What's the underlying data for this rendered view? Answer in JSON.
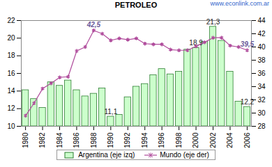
{
  "chart_data": {
    "type": "bar",
    "title": "PETROLEO",
    "source": "www.econlink.com.ar",
    "x": [
      1980,
      1981,
      1982,
      1983,
      1984,
      1985,
      1986,
      1987,
      1988,
      1989,
      1990,
      1991,
      1992,
      1993,
      1994,
      1995,
      1996,
      1997,
      1998,
      1999,
      2000,
      2001,
      2002,
      2003,
      2004,
      2005,
      2006
    ],
    "xlim": [
      1979.5,
      2006.5
    ],
    "xticks": [
      1980,
      1982,
      1984,
      1986,
      1988,
      1990,
      1992,
      1994,
      1996,
      1998,
      2000,
      2002,
      2004,
      2006
    ],
    "ylim": [
      10,
      22
    ],
    "yticks": [
      10,
      12,
      14,
      16,
      18,
      20,
      22
    ],
    "y2lim": [
      28,
      44
    ],
    "y2ticks": [
      28,
      30,
      32,
      34,
      36,
      38,
      40,
      42,
      44
    ],
    "legend": "bottom",
    "series": [
      {
        "name": "Argentina (eje izq)",
        "type": "bar",
        "color": "#ccffcc",
        "values": [
          14.1,
          13.1,
          12.1,
          15.0,
          14.6,
          15.2,
          14.1,
          13.4,
          13.7,
          14.3,
          11.1,
          11.3,
          13.3,
          14.5,
          14.8,
          15.8,
          16.5,
          15.9,
          16.2,
          18.7,
          18.9,
          19.6,
          21.3,
          19.7,
          16.2,
          12.8,
          12.2
        ]
      },
      {
        "name": "Mundo (eje der)",
        "type": "line",
        "axis": "y2",
        "color": "#b04c9c",
        "marker": "asterisk",
        "values": [
          29.6,
          31.5,
          33.7,
          34.5,
          35.4,
          35.5,
          39.4,
          40.0,
          42.5,
          42.0,
          41.0,
          41.3,
          41.1,
          41.3,
          40.5,
          40.4,
          40.4,
          39.6,
          39.5,
          39.5,
          40.1,
          40.7,
          41.4,
          41.4,
          40.2,
          40.0,
          39.5
        ]
      }
    ],
    "annotations": [
      {
        "series": "Mundo (eje der)",
        "x": 1988,
        "label": "42,5"
      },
      {
        "series": "Mundo (eje der)",
        "x": 2006,
        "label": "39,5"
      },
      {
        "series": "Argentina (eje izq)",
        "x": 1990,
        "label": "11,1"
      },
      {
        "series": "Argentina (eje izq)",
        "x": 2000,
        "label": "18,9"
      },
      {
        "series": "Argentina (eje izq)",
        "x": 2002,
        "label": "21,3"
      },
      {
        "series": "Argentina (eje izq)",
        "x": 2006,
        "label": "12,2"
      }
    ]
  }
}
